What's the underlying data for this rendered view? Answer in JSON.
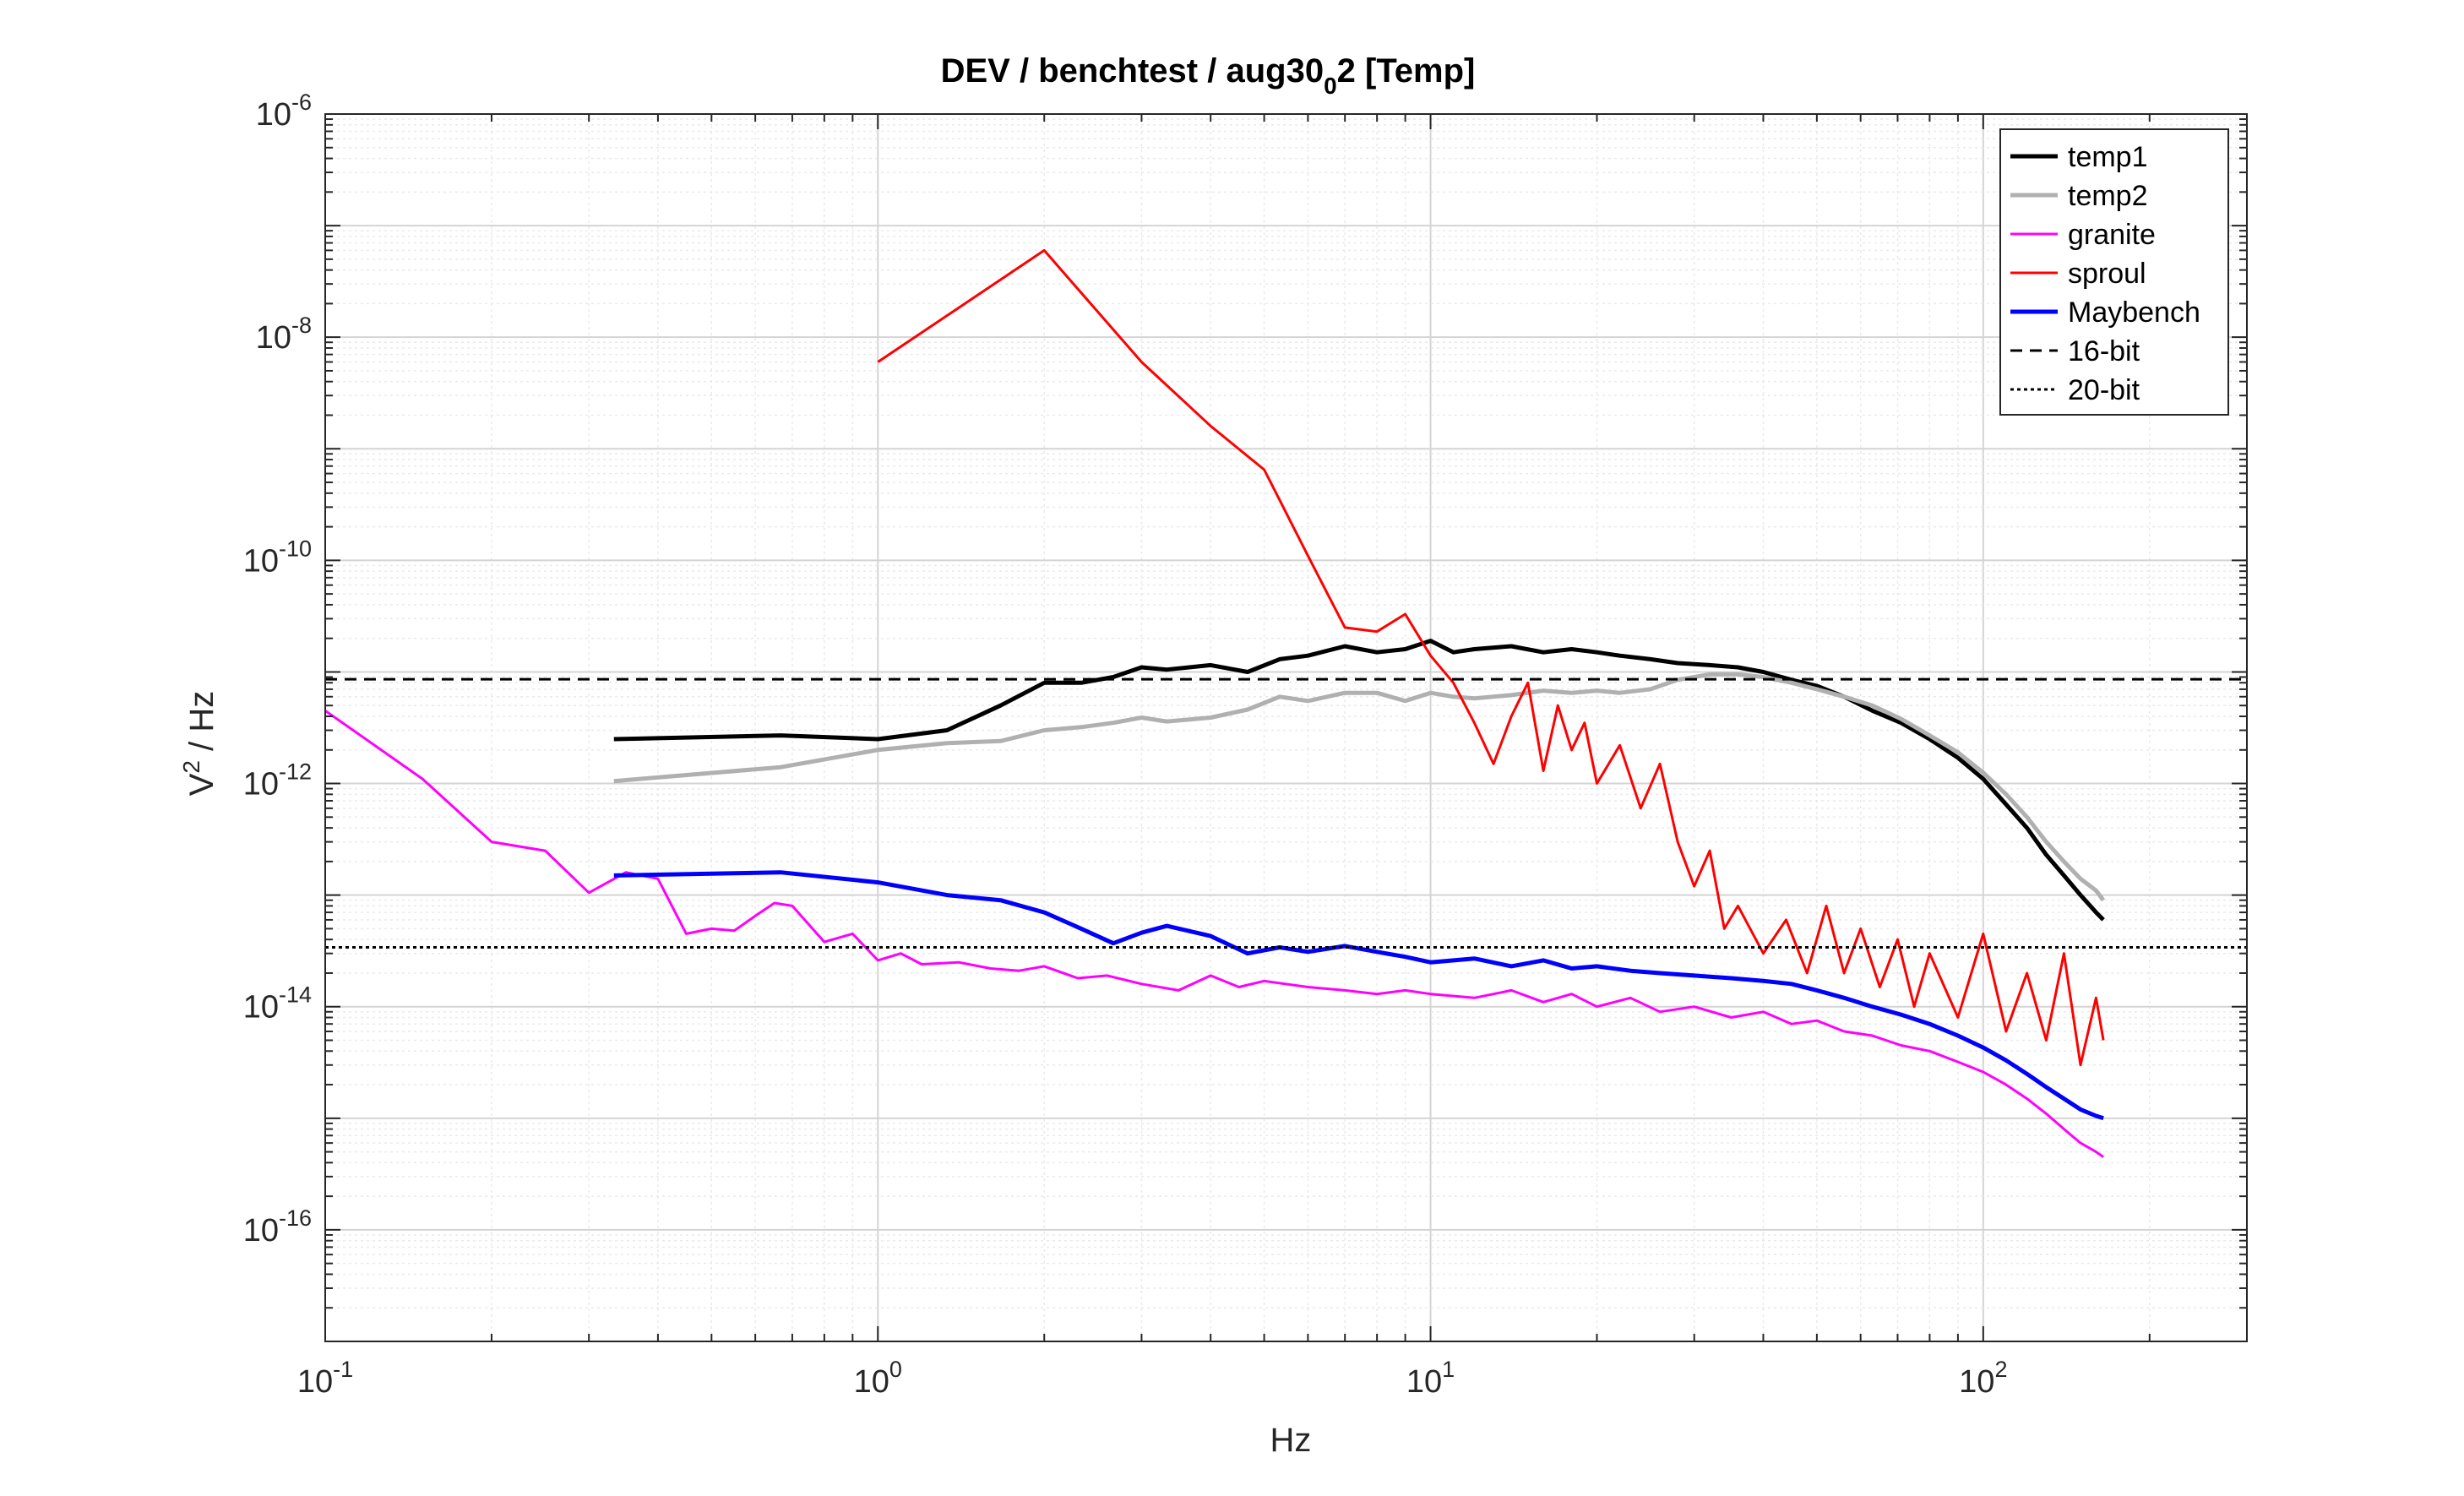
{
  "chart_data": {
    "type": "line",
    "title": {
      "prefix": "DEV / benchtest / aug30",
      "subscript": "0",
      "suffix": "2  [Temp]"
    },
    "xlabel": "Hz",
    "ylabel": {
      "base": "V",
      "sup": "2",
      "rest": " / Hz"
    },
    "xscale": "log",
    "yscale": "log",
    "xlim": [
      0.1,
      300
    ],
    "ylim": [
      1e-17,
      1e-06
    ],
    "grid": true,
    "x_ticks": [
      {
        "base": "10",
        "exp": "-1",
        "value": 0.1
      },
      {
        "base": "10",
        "exp": "0",
        "value": 1
      },
      {
        "base": "10",
        "exp": "1",
        "value": 10
      },
      {
        "base": "10",
        "exp": "2",
        "value": 100
      }
    ],
    "y_ticks": [
      {
        "base": "10",
        "exp": "-16",
        "value": 1e-16
      },
      {
        "base": "10",
        "exp": "-14",
        "value": 1e-14
      },
      {
        "base": "10",
        "exp": "-12",
        "value": 1e-12
      },
      {
        "base": "10",
        "exp": "-10",
        "value": 1e-10
      },
      {
        "base": "10",
        "exp": "-8",
        "value": 1e-08
      },
      {
        "base": "10",
        "exp": "-6",
        "value": 1e-06
      }
    ],
    "legend_position": "top-right",
    "series": [
      {
        "name": "temp1",
        "color": "#000000",
        "width": 5,
        "style": "solid",
        "x": [
          0.333,
          0.667,
          1.0,
          1.333,
          1.667,
          2.0,
          2.333,
          2.667,
          3.0,
          3.333,
          4.0,
          4.667,
          5.333,
          6.0,
          7.0,
          8.0,
          9.0,
          10.0,
          11.0,
          12.0,
          14.0,
          16.0,
          18.0,
          20.0,
          22.0,
          25.0,
          28.0,
          32.0,
          36.0,
          40.0,
          45.0,
          50.0,
          56.0,
          63.0,
          71.0,
          80.0,
          90.0,
          100.0,
          110.0,
          120.0,
          130.0,
          140.0,
          150.0,
          160.0,
          165.0
        ],
        "y": [
          2.5e-12,
          2.7e-12,
          2.5e-12,
          3e-12,
          5e-12,
          8e-12,
          8e-12,
          9e-12,
          1.1e-11,
          1.05e-11,
          1.15e-11,
          1e-11,
          1.3e-11,
          1.4e-11,
          1.7e-11,
          1.5e-11,
          1.6e-11,
          1.9e-11,
          1.5e-11,
          1.6e-11,
          1.7e-11,
          1.5e-11,
          1.6e-11,
          1.5e-11,
          1.4e-11,
          1.3e-11,
          1.2e-11,
          1.15e-11,
          1.1e-11,
          1e-11,
          8.5e-12,
          7.5e-12,
          6e-12,
          4.5e-12,
          3.5e-12,
          2.5e-12,
          1.7e-12,
          1.1e-12,
          6.5e-13,
          4e-13,
          2.3e-13,
          1.5e-13,
          1e-13,
          7e-14,
          6e-14
        ]
      },
      {
        "name": "temp2",
        "color": "#b0b0b0",
        "width": 5,
        "style": "solid",
        "x": [
          0.333,
          0.667,
          1.0,
          1.333,
          1.667,
          2.0,
          2.333,
          2.667,
          3.0,
          3.333,
          4.0,
          4.667,
          5.333,
          6.0,
          7.0,
          8.0,
          9.0,
          10.0,
          11.0,
          12.0,
          14.0,
          16.0,
          18.0,
          20.0,
          22.0,
          25.0,
          28.0,
          32.0,
          36.0,
          40.0,
          45.0,
          50.0,
          56.0,
          63.0,
          71.0,
          80.0,
          90.0,
          100.0,
          110.0,
          120.0,
          130.0,
          140.0,
          150.0,
          160.0,
          165.0
        ],
        "y": [
          1.05e-12,
          1.4e-12,
          2e-12,
          2.3e-12,
          2.4e-12,
          3e-12,
          3.2e-12,
          3.5e-12,
          3.9e-12,
          3.6e-12,
          3.9e-12,
          4.6e-12,
          6e-12,
          5.5e-12,
          6.5e-12,
          6.5e-12,
          5.5e-12,
          6.5e-12,
          6e-12,
          5.8e-12,
          6.2e-12,
          6.8e-12,
          6.5e-12,
          6.8e-12,
          6.5e-12,
          7e-12,
          8.5e-12,
          9.5e-12,
          9.5e-12,
          9e-12,
          8e-12,
          7e-12,
          6e-12,
          5e-12,
          3.8e-12,
          2.7e-12,
          1.9e-12,
          1.25e-12,
          8e-13,
          5e-13,
          3e-13,
          2e-13,
          1.4e-13,
          1.1e-13,
          9e-14
        ]
      },
      {
        "name": "granite",
        "color": "#ff00ff",
        "width": 3,
        "style": "solid",
        "x": [
          0.1,
          0.15,
          0.2,
          0.25,
          0.3,
          0.35,
          0.4,
          0.45,
          0.5,
          0.55,
          0.6,
          0.65,
          0.7,
          0.8,
          0.9,
          1.0,
          1.1,
          1.2,
          1.4,
          1.6,
          1.8,
          2.0,
          2.3,
          2.6,
          3.0,
          3.5,
          4.0,
          4.5,
          5.0,
          6.0,
          7.0,
          8.0,
          9.0,
          10.0,
          12.0,
          14.0,
          16.0,
          18.0,
          20.0,
          23.0,
          26.0,
          30.0,
          35.0,
          40.0,
          45.0,
          50.0,
          56.0,
          63.0,
          71.0,
          80.0,
          90.0,
          100.0,
          110.0,
          120.0,
          130.0,
          140.0,
          150.0,
          160.0,
          165.0
        ],
        "y": [
          4.5e-12,
          1.1e-12,
          3e-13,
          2.5e-13,
          1.05e-13,
          1.6e-13,
          1.4e-13,
          4.5e-14,
          5e-14,
          4.8e-14,
          6.5e-14,
          8.5e-14,
          8e-14,
          3.8e-14,
          4.5e-14,
          2.6e-14,
          3e-14,
          2.4e-14,
          2.5e-14,
          2.2e-14,
          2.1e-14,
          2.3e-14,
          1.8e-14,
          1.9e-14,
          1.6e-14,
          1.4e-14,
          1.9e-14,
          1.5e-14,
          1.7e-14,
          1.5e-14,
          1.4e-14,
          1.3e-14,
          1.4e-14,
          1.3e-14,
          1.2e-14,
          1.4e-14,
          1.1e-14,
          1.3e-14,
          1e-14,
          1.2e-14,
          9e-15,
          1e-14,
          8e-15,
          9e-15,
          7e-15,
          7.5e-15,
          6e-15,
          5.5e-15,
          4.5e-15,
          4e-15,
          3.2e-15,
          2.6e-15,
          2e-15,
          1.5e-15,
          1.1e-15,
          8e-16,
          6e-16,
          5e-16,
          4.5e-16
        ]
      },
      {
        "name": "sproul",
        "color": "#ff0000",
        "width": 3,
        "style": "solid",
        "x": [
          1.0,
          2.0,
          3.0,
          4.0,
          5.0,
          6.0,
          7.0,
          8.0,
          9.0,
          10.0,
          11.0,
          12.0,
          13.0,
          14.0,
          15.0,
          16.0,
          17.0,
          18.0,
          19.0,
          20.0,
          22.0,
          24.0,
          26.0,
          28.0,
          30.0,
          32.0,
          34.0,
          36.0,
          40.0,
          44.0,
          48.0,
          52.0,
          56.0,
          60.0,
          65.0,
          70.0,
          75.0,
          80.0,
          90.0,
          100.0,
          110.0,
          120.0,
          130.0,
          140.0,
          150.0,
          160.0,
          165.0
        ],
        "y": [
          6e-09,
          6e-08,
          6e-09,
          1.6e-09,
          6.5e-10,
          1.1e-10,
          2.5e-11,
          2.3e-11,
          3.3e-11,
          1.4e-11,
          8e-12,
          3.5e-12,
          1.5e-12,
          4e-12,
          8e-12,
          1.3e-12,
          5e-12,
          2e-12,
          3.5e-12,
          1e-12,
          2.2e-12,
          6e-13,
          1.5e-12,
          3e-13,
          1.2e-13,
          2.5e-13,
          5e-14,
          8e-14,
          3e-14,
          6e-14,
          2e-14,
          8e-14,
          2e-14,
          5e-14,
          1.5e-14,
          4e-14,
          1e-14,
          3e-14,
          8e-15,
          4.5e-14,
          6e-15,
          2e-14,
          5e-15,
          3e-14,
          3e-15,
          1.2e-14,
          5e-15
        ]
      },
      {
        "name": "Maybench",
        "color": "#0000ff",
        "width": 5,
        "style": "solid",
        "x": [
          0.333,
          0.667,
          1.0,
          1.333,
          1.667,
          2.0,
          2.333,
          2.667,
          3.0,
          3.333,
          4.0,
          4.667,
          5.333,
          6.0,
          7.0,
          8.0,
          9.0,
          10.0,
          12.0,
          14.0,
          16.0,
          18.0,
          20.0,
          23.0,
          26.0,
          30.0,
          35.0,
          40.0,
          45.0,
          50.0,
          56.0,
          63.0,
          71.0,
          80.0,
          90.0,
          100.0,
          110.0,
          120.0,
          130.0,
          140.0,
          150.0,
          160.0,
          165.0
        ],
        "y": [
          1.5e-13,
          1.6e-13,
          1.3e-13,
          1e-13,
          9e-14,
          7e-14,
          5e-14,
          3.7e-14,
          4.6e-14,
          5.3e-14,
          4.3e-14,
          3e-14,
          3.4e-14,
          3.1e-14,
          3.5e-14,
          3.1e-14,
          2.8e-14,
          2.5e-14,
          2.7e-14,
          2.3e-14,
          2.6e-14,
          2.2e-14,
          2.3e-14,
          2.1e-14,
          2e-14,
          1.9e-14,
          1.8e-14,
          1.7e-14,
          1.6e-14,
          1.4e-14,
          1.2e-14,
          1e-14,
          8.5e-15,
          7e-15,
          5.5e-15,
          4.3e-15,
          3.3e-15,
          2.5e-15,
          1.9e-15,
          1.5e-15,
          1.2e-15,
          1.05e-15,
          1e-15
        ]
      },
      {
        "name": "16-bit",
        "color": "#000000",
        "width": 3,
        "style": "dashed",
        "x": [
          0.1,
          300
        ],
        "y": [
          8.6e-12,
          8.6e-12
        ]
      },
      {
        "name": "20-bit",
        "color": "#000000",
        "width": 3,
        "style": "dotted",
        "x": [
          0.1,
          300
        ],
        "y": [
          3.4e-14,
          3.4e-14
        ]
      }
    ]
  }
}
